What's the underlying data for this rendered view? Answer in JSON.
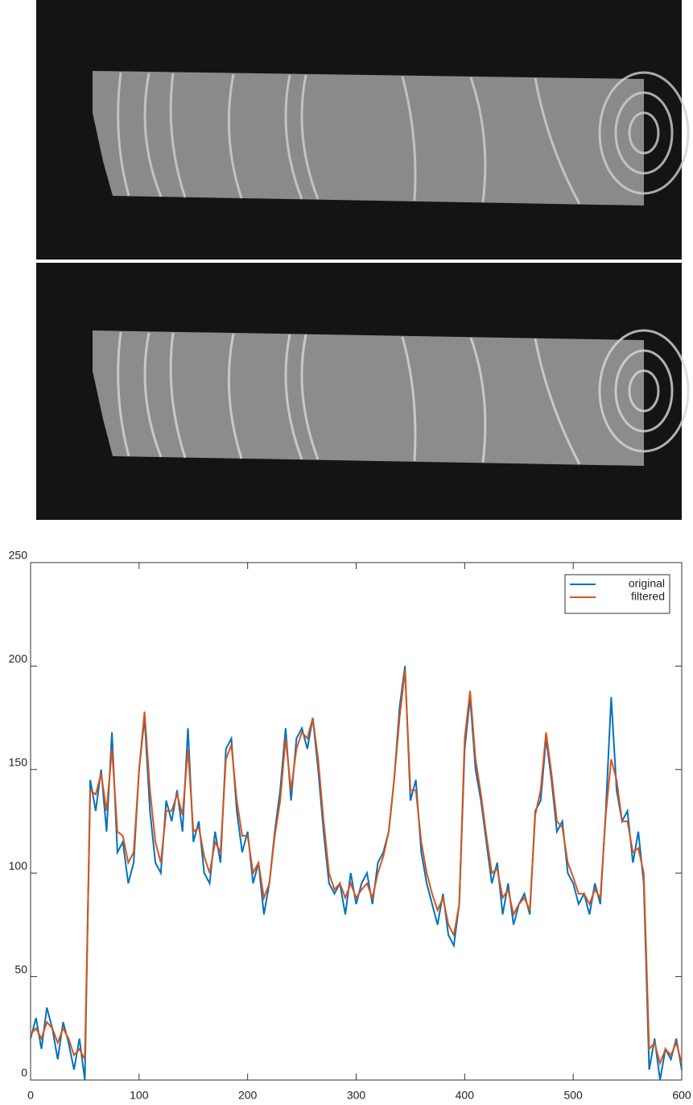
{
  "chart_data": {
    "type": "line",
    "x": [
      0,
      5,
      10,
      15,
      20,
      25,
      30,
      35,
      40,
      45,
      50,
      55,
      60,
      65,
      70,
      75,
      80,
      85,
      90,
      95,
      100,
      105,
      110,
      115,
      120,
      125,
      130,
      135,
      140,
      145,
      150,
      155,
      160,
      165,
      170,
      175,
      180,
      185,
      190,
      195,
      200,
      205,
      210,
      215,
      220,
      225,
      230,
      235,
      240,
      245,
      250,
      255,
      260,
      265,
      270,
      275,
      280,
      285,
      290,
      295,
      300,
      305,
      310,
      315,
      320,
      325,
      330,
      335,
      340,
      345,
      350,
      355,
      360,
      365,
      370,
      375,
      380,
      385,
      390,
      395,
      400,
      405,
      410,
      415,
      420,
      425,
      430,
      435,
      440,
      445,
      450,
      455,
      460,
      465,
      470,
      475,
      480,
      485,
      490,
      495,
      500,
      505,
      510,
      515,
      520,
      525,
      530,
      535,
      540,
      545,
      550,
      555,
      560,
      565,
      570,
      575,
      580,
      585,
      590,
      595,
      600
    ],
    "series": [
      {
        "name": "original",
        "color": "#0072bd",
        "values": [
          20,
          30,
          15,
          35,
          25,
          10,
          28,
          18,
          5,
          20,
          0,
          145,
          130,
          150,
          120,
          168,
          110,
          115,
          95,
          105,
          150,
          175,
          130,
          105,
          100,
          135,
          125,
          140,
          120,
          170,
          115,
          125,
          100,
          95,
          120,
          105,
          160,
          165,
          130,
          110,
          120,
          95,
          105,
          80,
          95,
          120,
          140,
          170,
          135,
          165,
          170,
          160,
          175,
          150,
          120,
          95,
          90,
          95,
          80,
          100,
          85,
          95,
          100,
          85,
          105,
          110,
          120,
          145,
          180,
          200,
          135,
          145,
          110,
          95,
          85,
          75,
          90,
          70,
          65,
          85,
          160,
          185,
          150,
          135,
          115,
          95,
          105,
          80,
          95,
          75,
          85,
          90,
          80,
          130,
          135,
          165,
          145,
          120,
          125,
          100,
          95,
          85,
          90,
          80,
          95,
          85,
          130,
          185,
          140,
          125,
          130,
          105,
          120,
          95,
          5,
          20,
          0,
          15,
          10,
          20,
          5
        ]
      },
      {
        "name": "filtered",
        "color": "#d95319",
        "values": [
          22,
          25,
          20,
          28,
          25,
          18,
          25,
          20,
          12,
          15,
          10,
          140,
          138,
          148,
          130,
          160,
          120,
          118,
          105,
          110,
          150,
          178,
          140,
          115,
          105,
          130,
          130,
          138,
          128,
          160,
          120,
          122,
          108,
          100,
          115,
          110,
          155,
          162,
          135,
          118,
          118,
          100,
          105,
          88,
          95,
          118,
          135,
          165,
          140,
          160,
          168,
          165,
          175,
          155,
          125,
          100,
          92,
          95,
          88,
          95,
          88,
          92,
          95,
          88,
          100,
          108,
          120,
          145,
          175,
          198,
          140,
          140,
          115,
          100,
          90,
          82,
          88,
          75,
          70,
          85,
          165,
          188,
          155,
          138,
          118,
          100,
          102,
          88,
          92,
          80,
          85,
          88,
          82,
          128,
          140,
          168,
          148,
          125,
          122,
          105,
          98,
          90,
          90,
          85,
          92,
          88,
          128,
          155,
          145,
          125,
          125,
          110,
          112,
          100,
          15,
          18,
          8,
          15,
          12,
          18,
          8
        ]
      }
    ],
    "xlim": [
      0,
      600
    ],
    "ylim": [
      0,
      250
    ],
    "xticks": [
      0,
      100,
      200,
      300,
      400,
      500,
      600
    ],
    "yticks": [
      0,
      50,
      100,
      150,
      200,
      250
    ],
    "legend": "upper right"
  }
}
